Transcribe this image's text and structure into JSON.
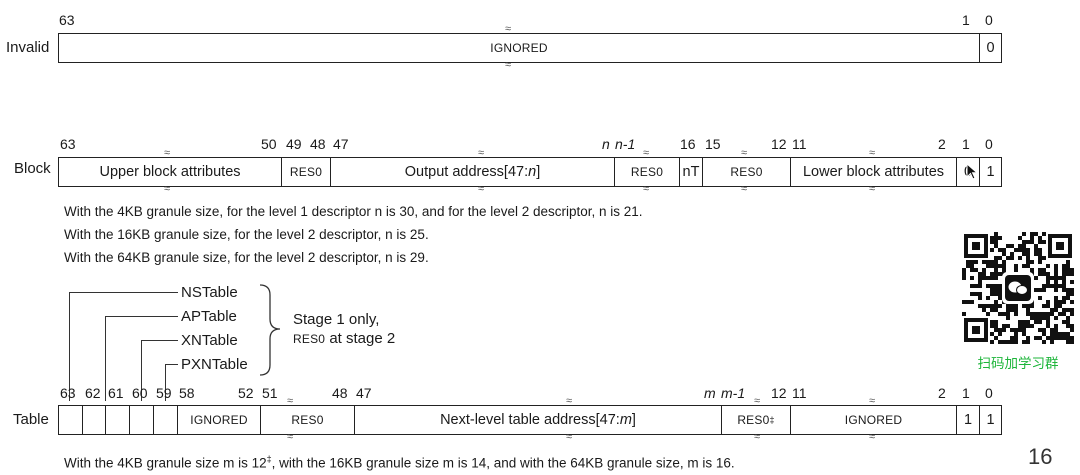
{
  "invalid": {
    "row_label": "Invalid",
    "bit_hi": "63",
    "bit_1": "1",
    "bit_0": "0",
    "ignored": "IGNORED",
    "bit0_value": "0"
  },
  "block": {
    "row_label": "Block",
    "bits": {
      "b63": "63",
      "b50": "50",
      "b49": "49",
      "b48": "48",
      "b47": "47",
      "bn": "n",
      "bn1": "n-1",
      "b16": "16",
      "b15": "15",
      "b12": "12",
      "b11": "11",
      "b2": "2",
      "b1": "1",
      "b0": "0"
    },
    "fields": {
      "upper": "Upper block attributes",
      "res0_a": "RES0",
      "output_prefix": "Output address[47:",
      "output_var": "n",
      "output_suffix": "]",
      "res0_b": "RES0",
      "nt": "nT",
      "res0_c": "RES0",
      "lower": "Lower block attributes",
      "bit1": "0",
      "bit0": "1"
    },
    "notes": [
      "With the 4KB granule size, for the level 1 descriptor n is 30, and for the level 2 descriptor, n is 21.",
      "With the 16KB granule size, for the level 2 descriptor, n is 25.",
      "With the 64KB granule size, for the level 2 descriptor, n is 29."
    ]
  },
  "legend": {
    "items": [
      "NSTable",
      "APTable",
      "XNTable",
      "PXNTable"
    ],
    "note_line1": "Stage 1 only,",
    "note_line2_res": "RES0",
    "note_line2_rest": " at stage 2"
  },
  "table": {
    "row_label": "Table",
    "bits": {
      "b63": "63",
      "b62": "62",
      "b61": "61",
      "b60": "60",
      "b59": "59",
      "b58": "58",
      "b52": "52",
      "b51": "51",
      "b48": "48",
      "b47": "47",
      "bm": "m",
      "bm1": "m-1",
      "b12": "12",
      "b11": "11",
      "b2": "2",
      "b1": "1",
      "b0": "0"
    },
    "fields": {
      "ignored_a": "IGNORED",
      "res0_a": "RES0",
      "next_prefix": "Next-level table address[47:",
      "next_var": "m",
      "next_suffix": "]",
      "res0_b": "RES0",
      "res0_b_mark": "‡",
      "ignored_b": "IGNORED",
      "bit1": "1",
      "bit0": "1"
    },
    "footnote": {
      "p1": "With the 4KB granule size m is 12",
      "mark": "‡",
      "p2": ", with the 16KB granule size m is 14, and with the 64KB granule size, m is 16."
    }
  },
  "qr_caption": "扫码加学习群",
  "page_number": "16"
}
